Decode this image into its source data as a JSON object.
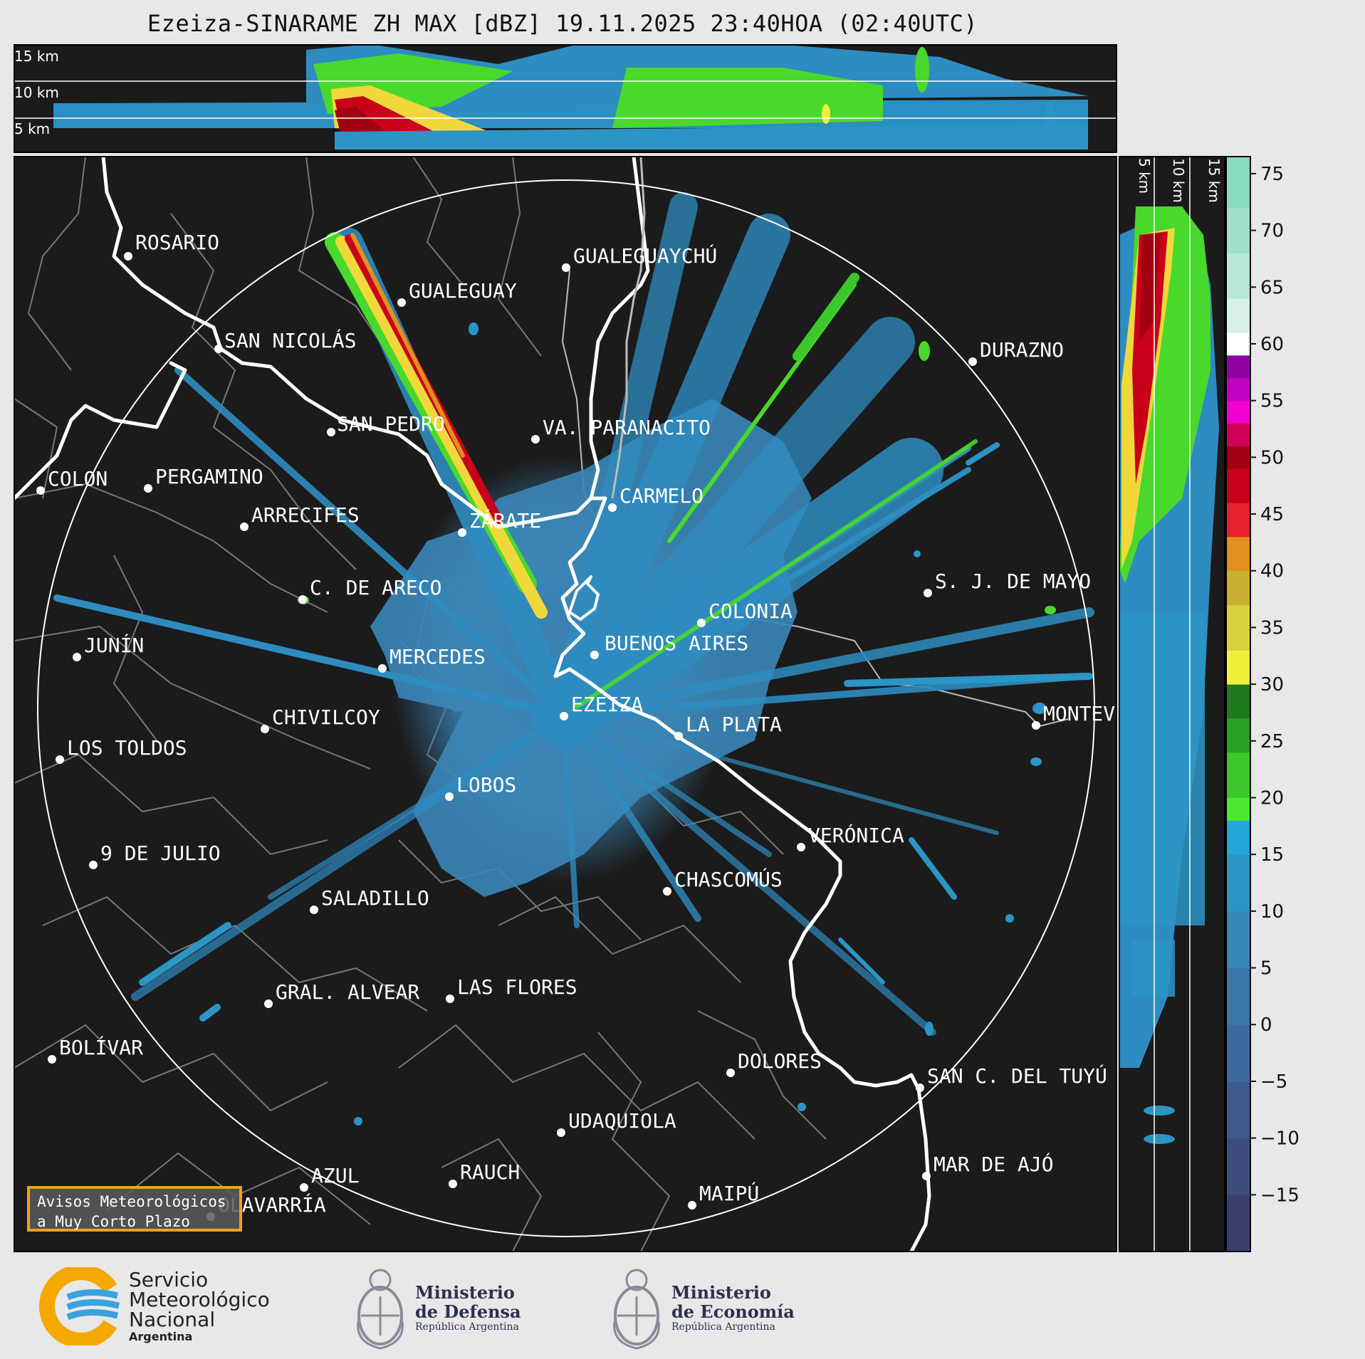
{
  "title": "Ezeiza-SINARAME ZH MAX [dBZ] 19.11.2025 23:40HOA (02:40UTC)",
  "top_panel_heights": [
    "15 km",
    "10 km",
    "5 km"
  ],
  "side_panel_heights": [
    "5 km",
    "10 km",
    "15 km"
  ],
  "cities": [
    {
      "name": "ROSARIO"
    },
    {
      "name": "GUALEGUAYCHÚ"
    },
    {
      "name": "GUALEGUAY"
    },
    {
      "name": "SAN NICOLÁS"
    },
    {
      "name": "DURAZNO"
    },
    {
      "name": "SAN PEDRO"
    },
    {
      "name": "VA. PARANACITO"
    },
    {
      "name": "COLON"
    },
    {
      "name": "PERGAMINO"
    },
    {
      "name": "CARMELO"
    },
    {
      "name": "ARRECIFES"
    },
    {
      "name": "ZÁRATE"
    },
    {
      "name": "S. J. DE MAYO"
    },
    {
      "name": "C. DE ARECO"
    },
    {
      "name": "COLONIA"
    },
    {
      "name": "JUNÍN"
    },
    {
      "name": "BUENOS AIRES"
    },
    {
      "name": "MERCEDES"
    },
    {
      "name": "MONTEV"
    },
    {
      "name": "EZEIZA"
    },
    {
      "name": "CHIVILCOY"
    },
    {
      "name": "LA PLATA"
    },
    {
      "name": "LOS TOLDOS"
    },
    {
      "name": "LOBOS"
    },
    {
      "name": "VERÓNICA"
    },
    {
      "name": "9 DE JULIO"
    },
    {
      "name": "CHASCOMÚS"
    },
    {
      "name": "SALADILLO"
    },
    {
      "name": "GRAL. ALVEAR"
    },
    {
      "name": "LAS FLORES"
    },
    {
      "name": "BOLÍVAR"
    },
    {
      "name": "DOLORES"
    },
    {
      "name": "SAN C. DEL TUYÚ"
    },
    {
      "name": "UDAQUIOLA"
    },
    {
      "name": "MAR DE AJÓ"
    },
    {
      "name": "AZUL"
    },
    {
      "name": "RAUCH"
    },
    {
      "name": "MAIPÚ"
    },
    {
      "name": "OLAVARRÍA"
    }
  ],
  "colorbar": {
    "ticks": [
      "75",
      "70",
      "65",
      "60",
      "55",
      "50",
      "45",
      "40",
      "35",
      "30",
      "25",
      "20",
      "15",
      "10",
      "5",
      "0",
      "−5",
      "−10",
      "−15"
    ],
    "range": [
      -20,
      76.5
    ],
    "stops": [
      {
        "from": -20,
        "to": -15,
        "color": "#3b3f6a"
      },
      {
        "from": -15,
        "to": -10,
        "color": "#3f4c7e"
      },
      {
        "from": -10,
        "to": -5,
        "color": "#3f5a8d"
      },
      {
        "from": -5,
        "to": 0,
        "color": "#3d6a9c"
      },
      {
        "from": 0,
        "to": 5,
        "color": "#3a78aa"
      },
      {
        "from": 5,
        "to": 10,
        "color": "#3487b8"
      },
      {
        "from": 10,
        "to": 15,
        "color": "#2b95c6"
      },
      {
        "from": 15,
        "to": 18,
        "color": "#25a6d8"
      },
      {
        "from": 18,
        "to": 20,
        "color": "#4ce830"
      },
      {
        "from": 20,
        "to": 24,
        "color": "#3cc82a"
      },
      {
        "from": 24,
        "to": 27,
        "color": "#2aa022"
      },
      {
        "from": 27,
        "to": 30,
        "color": "#1e7a1a"
      },
      {
        "from": 30,
        "to": 33,
        "color": "#f0f03a"
      },
      {
        "from": 33,
        "to": 37,
        "color": "#d8d040"
      },
      {
        "from": 37,
        "to": 40,
        "color": "#c8b030"
      },
      {
        "from": 40,
        "to": 43,
        "color": "#e09020"
      },
      {
        "from": 43,
        "to": 46,
        "color": "#e82030"
      },
      {
        "from": 46,
        "to": 49,
        "color": "#c8001a"
      },
      {
        "from": 49,
        "to": 51,
        "color": "#a00010"
      },
      {
        "from": 51,
        "to": 53,
        "color": "#d0005a"
      },
      {
        "from": 53,
        "to": 55,
        "color": "#f000d0"
      },
      {
        "from": 55,
        "to": 57,
        "color": "#c000c0"
      },
      {
        "from": 57,
        "to": 59,
        "color": "#9000a0"
      },
      {
        "from": 59,
        "to": 61,
        "color": "#ffffff"
      },
      {
        "from": 61,
        "to": 64,
        "color": "#d8f0e8"
      },
      {
        "from": 64,
        "to": 68,
        "color": "#b8e8d8"
      },
      {
        "from": 68,
        "to": 72,
        "color": "#9ee0c8"
      },
      {
        "from": 72,
        "to": 76.5,
        "color": "#86dcbc"
      }
    ]
  },
  "avisos": {
    "line1": "Avisos Meteorológicos",
    "line2": "a Muy Corto Plazo"
  },
  "logos": {
    "smn": {
      "line1": "Servicio",
      "line2": "Meteorológico",
      "line3": "Nacional",
      "sub": "Argentina"
    },
    "defensa": {
      "line1": "Ministerio",
      "line2": "de Defensa",
      "sub": "República Argentina"
    },
    "economia": {
      "line1": "Ministerio",
      "line2": "de Economía",
      "sub": "República Argentina"
    }
  },
  "colors": {
    "map_bg": "#1b1b1b",
    "range_ring": "#ffffff",
    "coast": "#ffffff",
    "boundaries": "#777777",
    "echo_base": "#3b86b8"
  }
}
